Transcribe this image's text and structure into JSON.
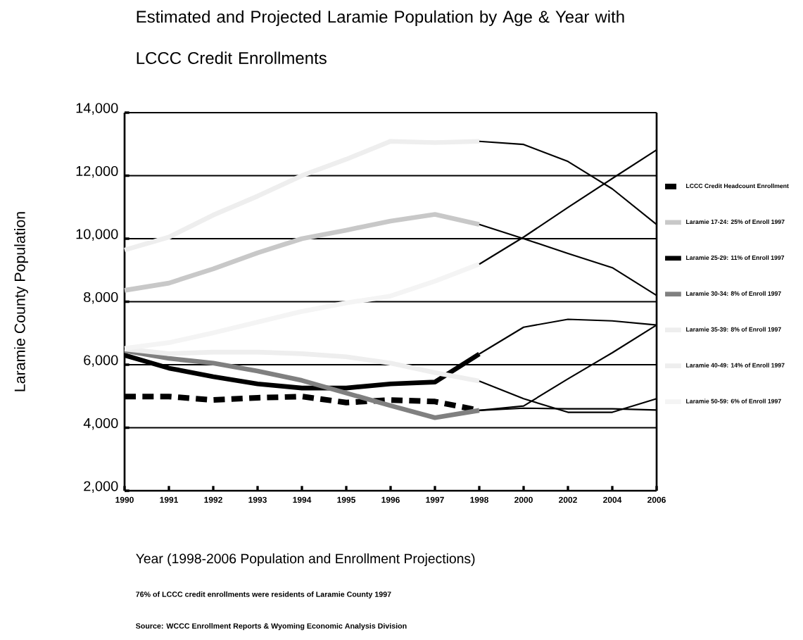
{
  "chart_data": {
    "type": "line",
    "title": "Estimated and Projected Laramie Population by Age & Year with LCCC Credit Enrollments",
    "xlabel": "Year (1998-2006 Population and Enrollment Projections)",
    "ylabel": "Laramie County Population",
    "categories": [
      "1990",
      "1991",
      "1992",
      "1993",
      "1994",
      "1995",
      "1996",
      "1997",
      "1998",
      "2000",
      "2002",
      "2004",
      "2006"
    ],
    "ylim": [
      2000,
      14000
    ],
    "yticks": [
      {
        "value": 2000,
        "label": "2,000"
      },
      {
        "value": 4000,
        "label": "4,000"
      },
      {
        "value": 6000,
        "label": "6,000"
      },
      {
        "value": 8000,
        "label": "8,000"
      },
      {
        "value": 10000,
        "label": "10,000"
      },
      {
        "value": 12000,
        "label": "12,000"
      },
      {
        "value": 14000,
        "label": "14,000"
      }
    ],
    "grid": "y",
    "legend": "right",
    "series": [
      {
        "name": "LCCC Credit Headcount Enrollment",
        "color": "#000000",
        "line_style": "dashed",
        "values": [
          4990,
          4990,
          4880,
          4950,
          4990,
          4800,
          4880,
          4830,
          4550,
          null,
          null,
          null,
          null
        ]
      },
      {
        "name": "Laramie 17-24: 25% of Enroll 1997",
        "color": "#c8c8c8",
        "line_style": "solid",
        "values": [
          8360,
          8590,
          9040,
          9550,
          10000,
          10270,
          10560,
          10770,
          10450,
          null,
          null,
          null,
          null
        ]
      },
      {
        "name": "Laramie 25-29: 11% of Enroll 1997",
        "color": "#000000",
        "line_style": "solid",
        "values": [
          6300,
          5890,
          5620,
          5390,
          5260,
          5260,
          5390,
          5450,
          6340,
          null,
          null,
          null,
          null
        ]
      },
      {
        "name": "Laramie 30-34: 8% of Enroll 1997",
        "color": "#808080",
        "line_style": "solid",
        "values": [
          6450,
          6200,
          6050,
          5800,
          5500,
          5100,
          4700,
          4320,
          4550,
          null,
          null,
          null,
          null
        ]
      },
      {
        "name": "Laramie 35-39: 8% of Enroll 1997",
        "color": "#eeeeee",
        "line_style": "solid",
        "values": [
          6500,
          6350,
          6400,
          6400,
          6350,
          6250,
          6050,
          5750,
          5480,
          null,
          null,
          null,
          null
        ]
      },
      {
        "name": "Laramie 40-49: 14% of Enroll 1997",
        "color": "#eeeeee",
        "line_style": "solid",
        "values": [
          9640,
          10050,
          10750,
          11350,
          12000,
          12520,
          13090,
          13050,
          13090,
          null,
          null,
          null,
          null
        ]
      },
      {
        "name": "Laramie 50-59: 6% of Enroll 1997",
        "color": "#f4f4f4",
        "line_style": "solid",
        "values": [
          6520,
          6700,
          7010,
          7350,
          7690,
          7960,
          8180,
          8650,
          9190,
          null,
          null,
          null,
          null
        ]
      },
      {
        "color": "#000000",
        "values": [
          null,
          null,
          null,
          null,
          null,
          null,
          null,
          null,
          4550,
          4620,
          4600,
          4600,
          4560
        ]
      },
      {
        "color": "#000000",
        "values": [
          null,
          null,
          null,
          null,
          null,
          null,
          null,
          null,
          10450,
          10000,
          9530,
          9080,
          8200
        ]
      },
      {
        "color": "#000000",
        "values": [
          null,
          null,
          null,
          null,
          null,
          null,
          null,
          null,
          6340,
          7190,
          7440,
          7390,
          7260
        ]
      },
      {
        "color": "#000000",
        "values": [
          null,
          null,
          null,
          null,
          null,
          null,
          null,
          null,
          4550,
          4690,
          5550,
          6380,
          7260
        ]
      },
      {
        "color": "#000000",
        "values": [
          null,
          null,
          null,
          null,
          null,
          null,
          null,
          null,
          5480,
          4920,
          4490,
          4490,
          4920
        ]
      },
      {
        "color": "#000000",
        "values": [
          null,
          null,
          null,
          null,
          null,
          null,
          null,
          null,
          13090,
          12990,
          12450,
          11580,
          10450
        ]
      },
      {
        "color": "#000000",
        "values": [
          null,
          null,
          null,
          null,
          null,
          null,
          null,
          null,
          9190,
          10050,
          10990,
          11910,
          12820
        ]
      }
    ],
    "annotations": [
      "76% of LCCC credit enrollments were residents of Laramie County 1997",
      "Source: WCCC Enrollment Reports & Wyoming Economic Analysis Division"
    ]
  }
}
